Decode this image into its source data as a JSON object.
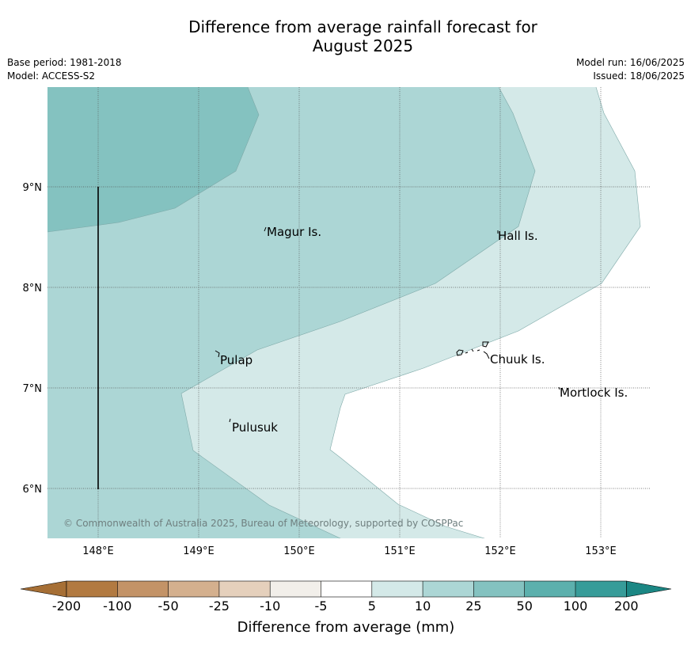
{
  "header": {
    "title_line1": "Difference from average rainfall forecast for",
    "title_line2": "August 2025",
    "base_period": "Base period: 1981-2018",
    "model": "Model: ACCESS-S2",
    "model_run": "Model run: 16/06/2025",
    "issued": "Issued: 18/06/2025"
  },
  "map": {
    "lon_ticks": [
      "148°E",
      "149°E",
      "150°E",
      "151°E",
      "152°E",
      "153°E"
    ],
    "lat_ticks": [
      "9°N",
      "8°N",
      "7°N",
      "6°N"
    ],
    "places": [
      "Magur Is.",
      "Hall Is.",
      "Pulap",
      "Chuuk Is.",
      "Mortlock Is.",
      "Pulusuk"
    ],
    "copyright": "© Commonwealth of Australia 2025, Bureau of Meteorology, supported by COSPPac",
    "zone_colors": {
      "10_to_25": "#d4e9e8",
      "25_to_50": "#acd6d5",
      "50_to_100": "#84c2c0"
    }
  },
  "colorbar": {
    "title": "Difference from average (mm)",
    "ticks": [
      "-200",
      "-100",
      "-50",
      "-25",
      "-10",
      "-5",
      "5",
      "10",
      "25",
      "50",
      "100",
      "200"
    ],
    "colors": [
      "#a66f35",
      "#b27a41",
      "#c39367",
      "#d4b08e",
      "#e5d0bc",
      "#f2efea",
      "#ffffff",
      "#d4e9e8",
      "#acd6d5",
      "#84c2c0",
      "#5cb0ad",
      "#379c99",
      "#1b8784"
    ]
  }
}
